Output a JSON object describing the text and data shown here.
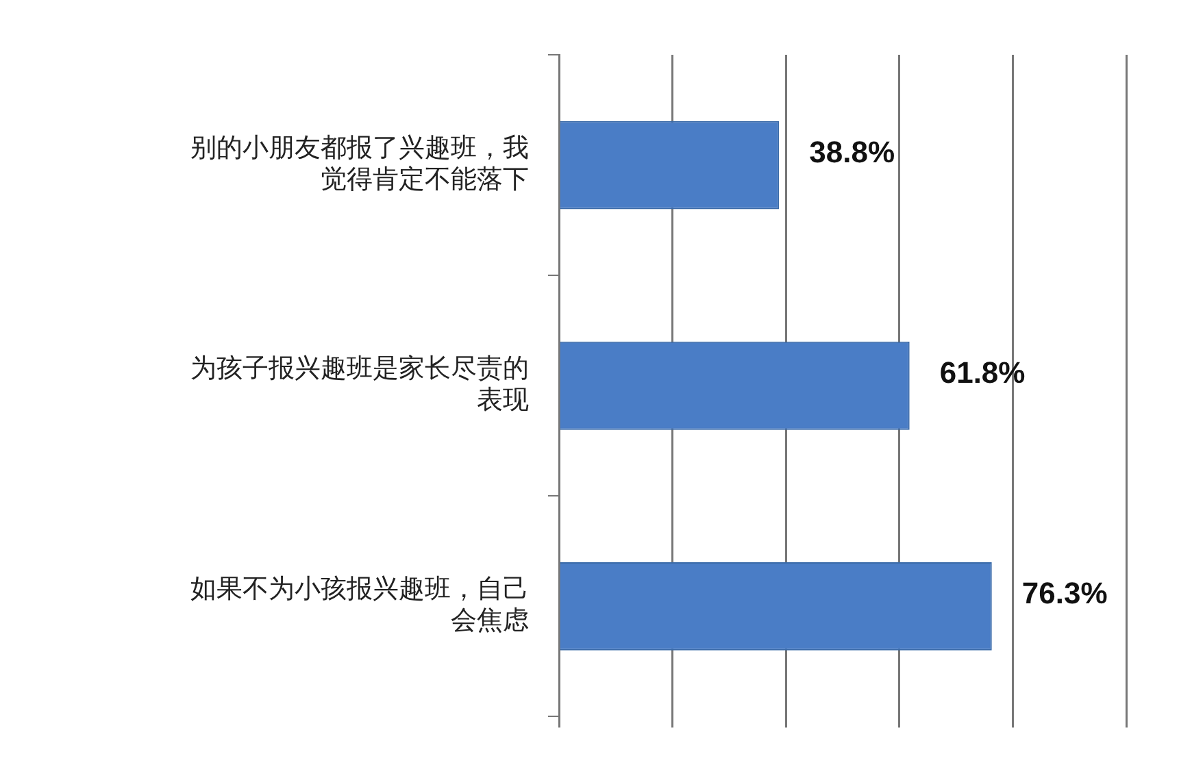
{
  "chart_data": {
    "type": "bar",
    "orientation": "horizontal",
    "categories": [
      "别的小朋友都报了兴趣班，我觉得肯定不能落下",
      "为孩子报兴趣班是家长尽责的表现",
      "如果不为小孩报兴趣班，自己会焦虑"
    ],
    "values": [
      38.8,
      61.8,
      76.3
    ],
    "color": "#4a7dc6",
    "value_labels": [
      "38.8%",
      "61.8%",
      "76.3%"
    ],
    "xlim": [
      0,
      100
    ],
    "xticks": [
      {
        "value": 0,
        "label": null
      },
      {
        "value": 20,
        "label": null
      },
      {
        "value": 40,
        "label": null
      },
      {
        "value": 60,
        "label": null
      },
      {
        "value": 80,
        "label": null
      },
      {
        "value": 100,
        "label": null
      }
    ],
    "tick_labels": "y",
    "grid": "x",
    "legend": false
  }
}
